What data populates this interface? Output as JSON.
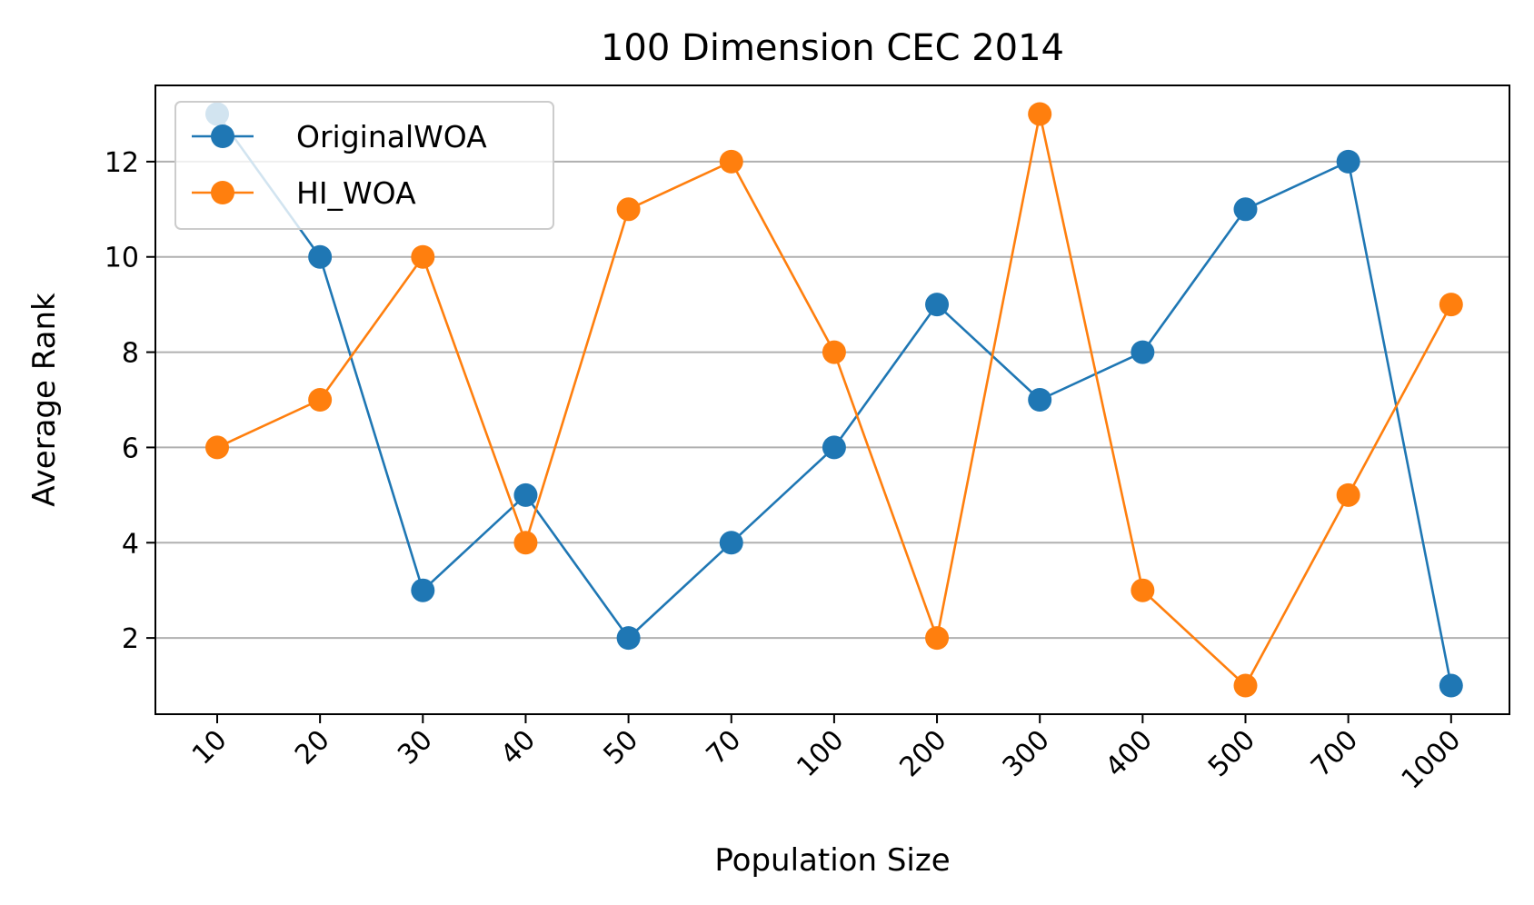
{
  "chart_data": {
    "type": "line",
    "title": "100 Dimension CEC 2014",
    "xlabel": "Population Size",
    "ylabel": "Average Rank",
    "categories": [
      "10",
      "20",
      "30",
      "40",
      "50",
      "70",
      "100",
      "200",
      "300",
      "400",
      "500",
      "700",
      "1000"
    ],
    "yticks": [
      2,
      4,
      6,
      8,
      10,
      12
    ],
    "ylim": [
      0.4,
      13.6
    ],
    "grid": "horizontal",
    "legend_position": "top-left",
    "series": [
      {
        "name": "OriginalWOA",
        "color": "#1f77b4",
        "values": [
          13,
          10,
          3,
          5,
          2,
          4,
          6,
          9,
          7,
          8,
          11,
          12,
          1
        ]
      },
      {
        "name": "HI_WOA",
        "color": "#ff7f0e",
        "values": [
          6,
          7,
          10,
          4,
          11,
          12,
          8,
          2,
          13,
          3,
          1,
          5,
          9
        ]
      }
    ]
  }
}
